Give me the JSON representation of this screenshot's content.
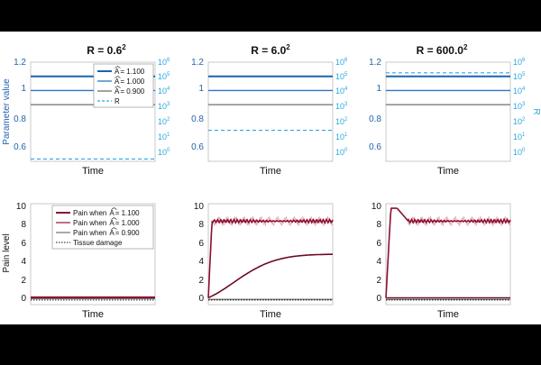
{
  "colors": {
    "bg_top": "#000000",
    "figure_bg": "#ffffff",
    "blue_dark": "#1f63ad",
    "blue_mid": "#2b77c2",
    "gray": "#6f6f6f",
    "cyan": "#2aa7e0",
    "red_dark": "#8c0f2e",
    "red_mid": "#9a1235",
    "red_band": "#e8a8b4",
    "black": "#111111"
  },
  "chart_data": [
    {
      "type": "line",
      "panel": "top-left",
      "title_base": "R = 0.6",
      "title_exp": "2",
      "xlabel": "Time",
      "ylabel": "Parameter value",
      "y_left_ticks": [
        "0.6",
        "0.8",
        "1",
        "1.2"
      ],
      "y_left_range": [
        0.5,
        1.2
      ],
      "y_right_ticks_exp": [
        "0",
        "1",
        "2",
        "3",
        "4",
        "5",
        "6"
      ],
      "y_right_base": "10",
      "series": [
        {
          "name": "A = 1.100",
          "value": 1.1
        },
        {
          "name": "A = 1.000",
          "value": 1.0
        },
        {
          "name": "A = 0.900",
          "value": 0.9
        }
      ],
      "R_log10": -0.44,
      "legend": {
        "position": "top-right",
        "entries": [
          "= 1.100",
          "= 1.000",
          "= 0.900",
          "R"
        ],
        "hat_symbol": "A"
      }
    },
    {
      "type": "line",
      "panel": "top-middle",
      "title_base": "R = 6.0",
      "title_exp": "2",
      "xlabel": "Time",
      "y_left_ticks": [
        "0.6",
        "0.8",
        "1",
        "1.2"
      ],
      "y_left_range": [
        0.5,
        1.2
      ],
      "y_right_ticks_exp": [
        "0",
        "1",
        "2",
        "3",
        "4",
        "5",
        "6"
      ],
      "y_right_base": "10",
      "series": [
        {
          "name": "A = 1.100",
          "value": 1.1
        },
        {
          "name": "A = 1.000",
          "value": 1.0
        },
        {
          "name": "A = 0.900",
          "value": 0.9
        }
      ],
      "R_log10": 1.56
    },
    {
      "type": "line",
      "panel": "top-right",
      "title_base": "R = 600.0",
      "title_exp": "2",
      "xlabel": "Time",
      "ylabel_right": "R",
      "y_left_ticks": [
        "0.6",
        "0.8",
        "1",
        "1.2"
      ],
      "y_left_range": [
        0.5,
        1.2
      ],
      "y_right_ticks_exp": [
        "0",
        "1",
        "2",
        "3",
        "4",
        "5",
        "6"
      ],
      "y_right_base": "10",
      "series": [
        {
          "name": "A = 1.100",
          "value": 1.1
        },
        {
          "name": "A = 1.000",
          "value": 1.0
        },
        {
          "name": "A = 0.900",
          "value": 0.9
        }
      ],
      "R_log10": 5.56
    },
    {
      "type": "line",
      "panel": "bottom-left",
      "xlabel": "Time",
      "ylabel": "Pain level",
      "y_ticks": [
        "0",
        "2",
        "4",
        "6",
        "8",
        "10"
      ],
      "y_range": [
        -0.5,
        10.5
      ],
      "series": [
        {
          "name": "Pain when A = 1.100",
          "level": 0.3
        },
        {
          "name": "Pain when A = 1.000",
          "level": 0.22
        },
        {
          "name": "Pain when A = 0.900",
          "level": 0.15
        },
        {
          "name": "Tissue damage",
          "level": 0.0
        }
      ],
      "legend": {
        "position": "top-center",
        "prefix": "Pain when",
        "entries": [
          "= 1.100",
          "= 1.000",
          "= 0.900"
        ],
        "tissue_label": "Tissue damage",
        "hat_symbol": "A"
      }
    },
    {
      "type": "line",
      "panel": "bottom-middle",
      "xlabel": "Time",
      "y_ticks": [
        "0",
        "2",
        "4",
        "6",
        "8",
        "10"
      ],
      "y_range": [
        -0.5,
        10.5
      ],
      "high_plateau": 8.6,
      "rise_end_fraction": 0.03,
      "slow_final": 5.0,
      "slow_rate": 4.5,
      "low_level": 0.25,
      "tissue_level": 0.0
    },
    {
      "type": "line",
      "panel": "bottom-right",
      "xlabel": "Time",
      "y_ticks": [
        "0",
        "2",
        "4",
        "6",
        "8",
        "10"
      ],
      "y_range": [
        -0.5,
        10.5
      ],
      "overshoot_peak": 10.0,
      "high_plateau": 8.6,
      "low_level": 0.25,
      "tissue_level": 0.0
    }
  ]
}
